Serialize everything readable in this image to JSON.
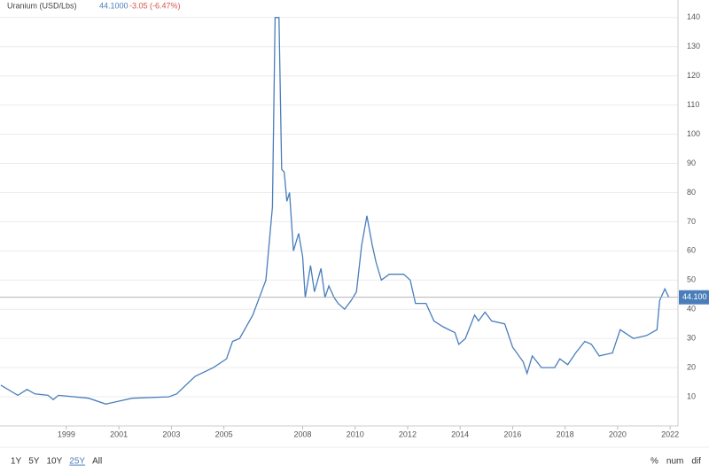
{
  "chart_data": {
    "type": "line",
    "title": "Uranium (USD/Lbs)",
    "price": "44.1000",
    "change": "-3.05 (-6.47%)",
    "last_label": "44.100",
    "x": [
      1996.5,
      1997.15,
      1997.5,
      1997.8,
      1998.3,
      1998.5,
      1998.7,
      1999.85,
      2000.5,
      2001.0,
      2001.5,
      2002.9,
      2003.2,
      2003.9,
      2004.6,
      2005.1,
      2005.33,
      2005.6,
      2006.1,
      2006.6,
      2006.85,
      2006.95,
      2007.1,
      2007.2,
      2007.3,
      2007.4,
      2007.5,
      2007.65,
      2007.85,
      2008.0,
      2008.1,
      2008.3,
      2008.45,
      2008.7,
      2008.85,
      2009.0,
      2009.2,
      2009.35,
      2009.6,
      2009.85,
      2010.05,
      2010.25,
      2010.45,
      2010.65,
      2010.8,
      2011.0,
      2011.3,
      2011.85,
      2012.1,
      2012.3,
      2012.7,
      2013.0,
      2013.35,
      2013.8,
      2013.95,
      2014.2,
      2014.55,
      2014.7,
      2014.95,
      2015.2,
      2015.7,
      2016.0,
      2016.4,
      2016.55,
      2016.75,
      2017.1,
      2017.6,
      2017.8,
      2018.1,
      2018.4,
      2018.75,
      2019.0,
      2019.3,
      2019.8,
      2020.1,
      2020.6,
      2021.1,
      2021.5,
      2021.6,
      2021.8,
      2021.95
    ],
    "series": [
      {
        "name": "Uranium",
        "color": "#4a7ebb",
        "values": [
          14,
          10.5,
          12.5,
          11,
          10.5,
          9,
          10.5,
          9.5,
          7.5,
          8.5,
          9.5,
          10,
          11,
          17,
          20,
          23,
          29,
          30,
          38,
          50,
          75,
          140,
          140,
          88,
          87,
          77,
          80,
          60,
          66,
          58,
          44,
          55,
          46,
          54,
          44,
          48,
          44,
          42,
          40,
          43,
          46,
          62,
          72,
          62,
          56,
          50,
          52,
          52,
          50,
          42,
          42,
          36,
          34,
          32,
          28,
          30,
          38,
          36,
          39,
          36,
          35,
          27,
          22,
          18,
          24,
          20,
          20,
          23,
          21,
          25,
          29,
          28,
          24,
          25,
          33,
          30,
          31,
          33,
          43,
          47,
          44.1
        ]
      }
    ],
    "xlim": [
      1996.47,
      2022.3
    ],
    "xticks": [
      1999,
      2001,
      2003,
      2005,
      2008,
      2010,
      2012,
      2014,
      2016,
      2018,
      2020,
      2022
    ],
    "ylim": [
      0,
      146
    ],
    "yticks": [
      10,
      20,
      30,
      40,
      50,
      60,
      70,
      80,
      90,
      100,
      110,
      120,
      130,
      140
    ],
    "last_value": 44.1,
    "grid": true
  },
  "ui": {
    "ranges": [
      "1Y",
      "5Y",
      "10Y",
      "25Y",
      "All"
    ],
    "active_range": 3,
    "modes": [
      "%",
      "num",
      "dif"
    ]
  }
}
